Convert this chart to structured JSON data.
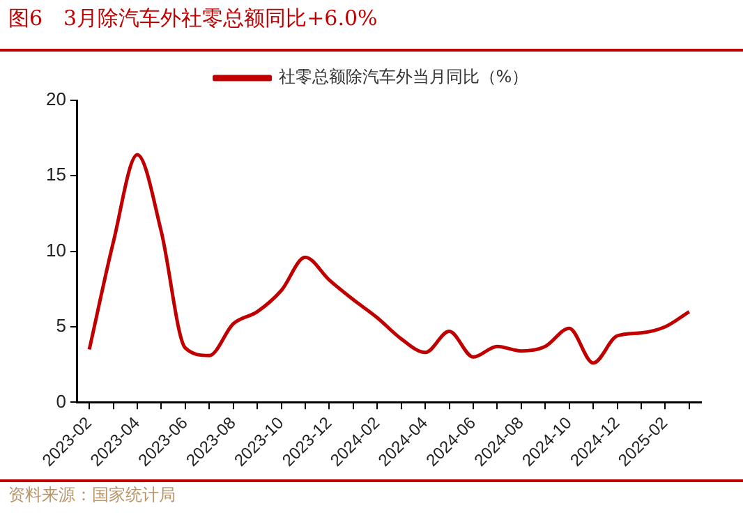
{
  "chart_data": {
    "type": "line",
    "title": "图6　3月除汽车外社零总额同比+6.0%",
    "categories": [
      "2023-02",
      null,
      "2023-04",
      null,
      "2023-06",
      null,
      "2023-08",
      null,
      "2023-10",
      null,
      "2023-12",
      null,
      "2024-02",
      null,
      "2024-04",
      null,
      "2024-06",
      null,
      "2024-08",
      null,
      "2024-10",
      null,
      "2024-12",
      null,
      "2025-02",
      null
    ],
    "series": [
      {
        "name": "社零总额除汽车外当月同比（%）",
        "color": "#c00000",
        "values": [
          3.5,
          10.6,
          16.4,
          11.3,
          3.6,
          3.1,
          5.2,
          6.0,
          7.4,
          9.6,
          8.1,
          6.8,
          5.6,
          4.2,
          3.3,
          4.7,
          3.0,
          3.7,
          3.4,
          3.7,
          4.9,
          2.6,
          4.4,
          4.6,
          5.0,
          6.0
        ]
      }
    ],
    "ylim": [
      0,
      20
    ],
    "yticks": [
      0,
      5,
      10,
      15,
      20
    ],
    "grid": false,
    "legend": "top",
    "marker": "none",
    "line_style": "solid",
    "annotations": [
      "资料来源：国家统计局"
    ]
  }
}
